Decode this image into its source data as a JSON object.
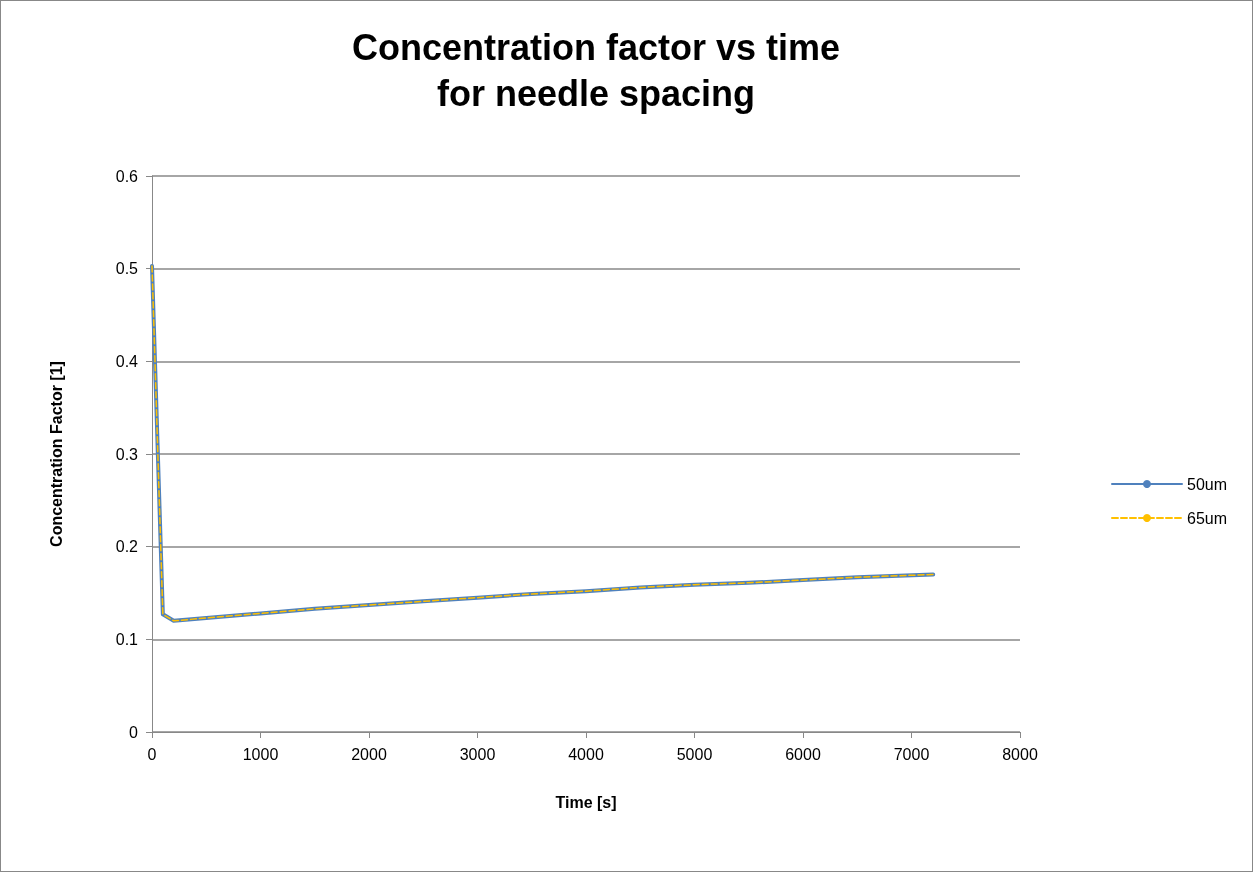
{
  "chart_data": {
    "type": "line",
    "title": "Concentration factor vs time\nfor needle spacing",
    "xlabel": "Time [s]",
    "ylabel": "Concentration Factor [1]",
    "x": [
      0,
      100,
      200,
      500,
      1000,
      1500,
      2000,
      2500,
      3000,
      3500,
      4000,
      4500,
      5000,
      5500,
      6000,
      6500,
      7200
    ],
    "series": [
      {
        "name": "50um",
        "color": "#4f81bd",
        "line_style": "solid",
        "values": [
          0.503,
          0.127,
          0.12,
          0.123,
          0.128,
          0.133,
          0.137,
          0.141,
          0.145,
          0.149,
          0.152,
          0.156,
          0.159,
          0.161,
          0.164,
          0.167,
          0.17
        ]
      },
      {
        "name": "65um",
        "color": "#ffc000",
        "line_style": "dashed",
        "values": [
          0.503,
          0.127,
          0.12,
          0.123,
          0.128,
          0.133,
          0.137,
          0.141,
          0.145,
          0.149,
          0.152,
          0.156,
          0.159,
          0.161,
          0.164,
          0.167,
          0.17
        ]
      }
    ],
    "xlim": [
      0,
      8000
    ],
    "xticks": [
      0,
      1000,
      2000,
      3000,
      4000,
      5000,
      6000,
      7000,
      8000
    ],
    "ylim": [
      0,
      0.6
    ],
    "yticks": [
      0,
      0.1,
      0.2,
      0.3,
      0.4,
      0.5,
      0.6
    ],
    "grid": "y",
    "legend": "right",
    "marker": "none"
  }
}
